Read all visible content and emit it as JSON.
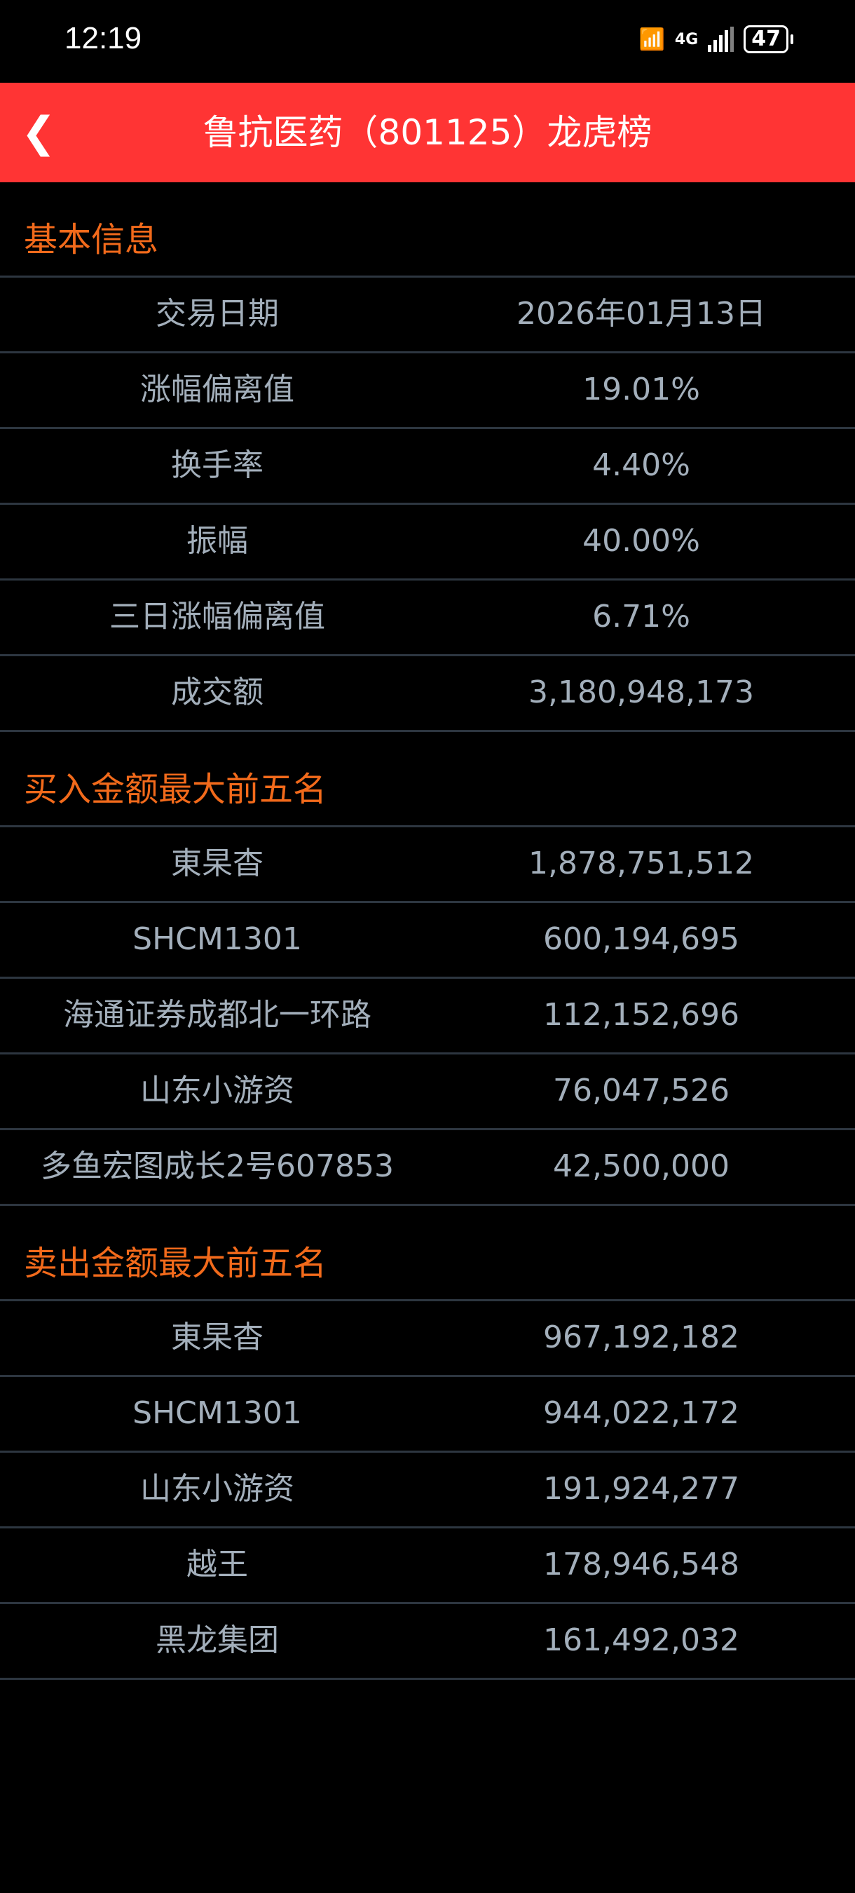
{
  "status_bar": {
    "time": "12:19",
    "wifi_label": "6",
    "network": "4G",
    "battery": "47"
  },
  "header": {
    "back_icon": "chevron-left-icon",
    "title": "鲁抗医药（801125）龙虎榜"
  },
  "colors": {
    "header_bg": "#ff3434",
    "section_title": "#f26a1b",
    "text": "#a3afbb",
    "divider": "#2d3640"
  },
  "sections": [
    {
      "title": "基本信息",
      "rows": [
        {
          "label": "交易日期",
          "value": "2026年01月13日"
        },
        {
          "label": "涨幅偏离值",
          "value": "19.01%"
        },
        {
          "label": "换手率",
          "value": "4.40%"
        },
        {
          "label": "振幅",
          "value": "40.00%"
        },
        {
          "label": "三日涨幅偏离值",
          "value": "6.71%"
        },
        {
          "label": "成交额",
          "value": "3,180,948,173"
        }
      ]
    },
    {
      "title": "买入金额最大前五名",
      "rows": [
        {
          "label": "東杲杳",
          "value": "1,878,751,512"
        },
        {
          "label": "SHCM1301",
          "value": "600,194,695"
        },
        {
          "label": "海通证券成都北一环路",
          "value": "112,152,696"
        },
        {
          "label": "山东小游资",
          "value": "76,047,526"
        },
        {
          "label": "多鱼宏图成长2号607853",
          "value": "42,500,000"
        }
      ]
    },
    {
      "title": "卖出金额最大前五名",
      "rows": [
        {
          "label": "東杲杳",
          "value": "967,192,182"
        },
        {
          "label": "SHCM1301",
          "value": "944,022,172"
        },
        {
          "label": "山东小游资",
          "value": "191,924,277"
        },
        {
          "label": "越王",
          "value": "178,946,548"
        },
        {
          "label": "黑龙集团",
          "value": "161,492,032"
        }
      ]
    }
  ]
}
